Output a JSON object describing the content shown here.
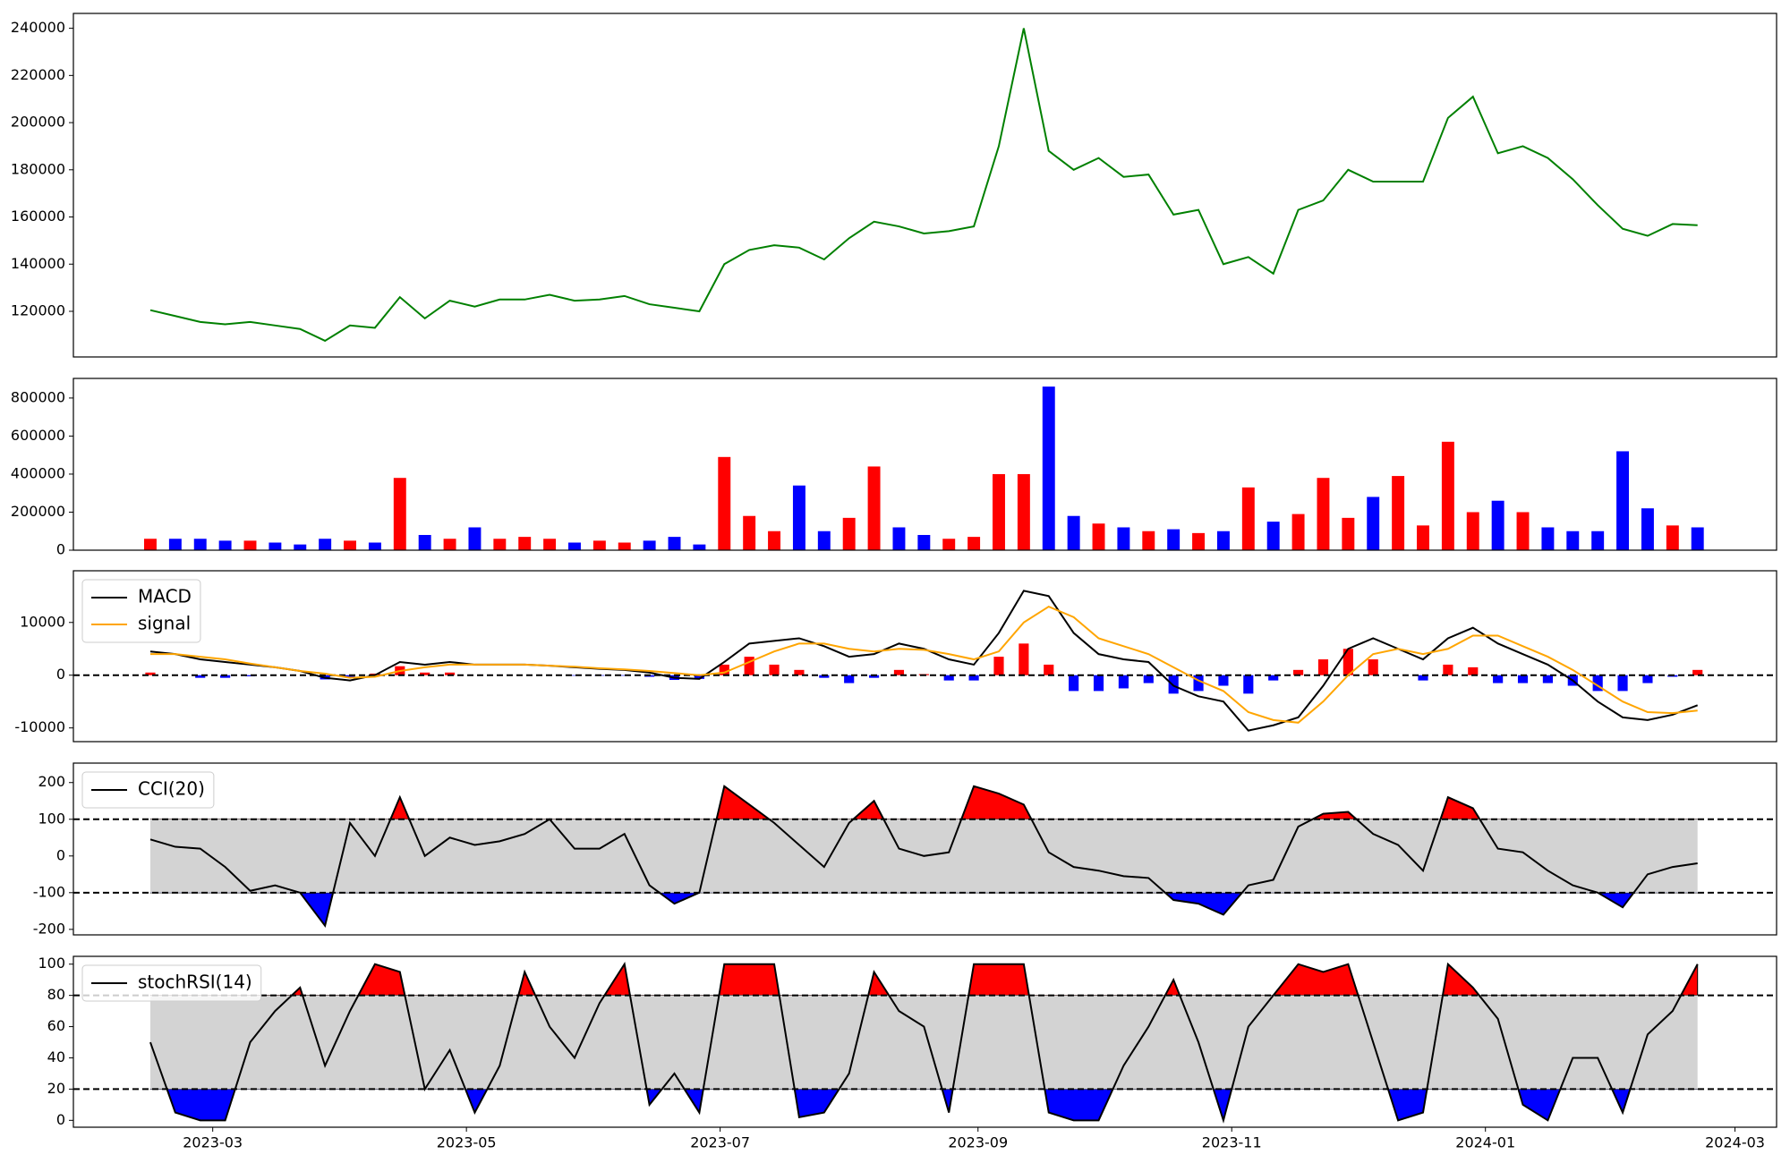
{
  "chart_data": [
    {
      "type": "line",
      "color": "#008000",
      "values": [
        120500,
        118000,
        115500,
        114500,
        115500,
        114000,
        112500,
        107500,
        114000,
        113000,
        126000,
        117000,
        124500,
        122000,
        125000,
        125000,
        127000,
        124500,
        125000,
        126500,
        123000,
        121500,
        120000,
        140000,
        146000,
        148000,
        147000,
        142000,
        151000,
        158000,
        156000,
        153000,
        154000,
        156000,
        190000,
        240000,
        188000,
        180000,
        185000,
        177000,
        178000,
        161000,
        163000,
        140000,
        143000,
        136000,
        163000,
        167000,
        180000,
        175000,
        175000,
        175000,
        202000,
        211000,
        187000,
        190000,
        185000,
        176000,
        165000,
        155000,
        152000,
        157000,
        156500
      ],
      "ylim": [
        100650,
        246300
      ],
      "yticks": [
        120000,
        140000,
        160000,
        180000,
        200000,
        220000,
        240000
      ]
    },
    {
      "type": "bar",
      "up_color": "#ff0000",
      "down_color": "#0000ff",
      "values": [
        60000,
        60000,
        60000,
        50000,
        50000,
        40000,
        30000,
        60000,
        50000,
        40000,
        380000,
        80000,
        60000,
        120000,
        60000,
        70000,
        60000,
        40000,
        50000,
        40000,
        50000,
        70000,
        30000,
        490000,
        180000,
        100000,
        340000,
        100000,
        170000,
        440000,
        120000,
        80000,
        60000,
        70000,
        400000,
        400000,
        860000,
        180000,
        140000,
        120000,
        100000,
        110000,
        90000,
        100000,
        330000,
        150000,
        190000,
        380000,
        170000,
        280000,
        390000,
        130000,
        570000,
        200000,
        260000,
        200000,
        120000,
        100000,
        100000,
        520000,
        220000,
        130000,
        120000
      ],
      "ylim": [
        0,
        903000
      ],
      "yticks": [
        0,
        200000,
        400000,
        600000,
        800000
      ]
    },
    {
      "type": "macd",
      "legend": "upper left",
      "zero_line": 0,
      "series": [
        {
          "name": "MACD",
          "color": "#000000",
          "values": [
            4500,
            4000,
            3000,
            2500,
            2000,
            1500,
            800,
            -500,
            -1000,
            0,
            2500,
            2000,
            2500,
            2000,
            2000,
            2000,
            1800,
            1500,
            1200,
            1000,
            500,
            -500,
            -700,
            2500,
            6000,
            6500,
            7000,
            5500,
            3500,
            4000,
            6000,
            5000,
            3000,
            2000,
            8000,
            16000,
            15000,
            8000,
            4000,
            3000,
            2500,
            -2000,
            -4000,
            -5000,
            -10500,
            -9500,
            -8000,
            -2000,
            5000,
            7000,
            5000,
            3000,
            7000,
            9000,
            6000,
            4000,
            2000,
            -1000,
            -5000,
            -8000,
            -8500,
            -7500,
            -5700
          ]
        },
        {
          "name": "signal",
          "color": "#ffa500",
          "values": [
            4000,
            4000,
            3500,
            3000,
            2200,
            1500,
            800,
            300,
            -500,
            -300,
            800,
            1500,
            2000,
            2000,
            2000,
            2000,
            1800,
            1600,
            1300,
            1100,
            800,
            400,
            0,
            500,
            2500,
            4500,
            6000,
            6000,
            5000,
            4500,
            5000,
            4800,
            4000,
            3000,
            4500,
            10000,
            13000,
            11000,
            7000,
            5500,
            4000,
            1500,
            -1000,
            -3000,
            -7000,
            -8500,
            -9000,
            -5000,
            0,
            4000,
            5000,
            4000,
            5000,
            7500,
            7500,
            5500,
            3500,
            1000,
            -2000,
            -5000,
            -7000,
            -7200,
            -6700
          ]
        }
      ],
      "histogram": {
        "up_color": "#ff0000",
        "down_color": "#0000ff",
        "values": [
          500,
          0,
          -500,
          -500,
          -200,
          0,
          0,
          -800,
          -500,
          300,
          1700,
          500,
          500,
          0,
          0,
          0,
          0,
          -100,
          -100,
          -100,
          -300,
          -900,
          -700,
          2000,
          3500,
          2000,
          1000,
          -500,
          -1500,
          -500,
          1000,
          200,
          -1000,
          -1000,
          3500,
          6000,
          2000,
          -3000,
          -3000,
          -2500,
          -1500,
          -3500,
          -3000,
          -2000,
          -3500,
          -1000,
          1000,
          3000,
          5000,
          3000,
          0,
          -1000,
          2000,
          1500,
          -1500,
          -1500,
          -1500,
          -2000,
          -3000,
          -3000,
          -1500,
          -300,
          1000
        ]
      },
      "ylim": [
        -12600,
        19800
      ],
      "yticks": [
        -10000,
        0,
        10000
      ]
    },
    {
      "type": "oscillator",
      "legend": "upper left",
      "thresholds": [
        -100,
        100
      ],
      "band_color": "#d3d3d3",
      "over_color": "#ff0000",
      "under_color": "#0000ff",
      "series": [
        {
          "name": "CCI(20)",
          "color": "#000000",
          "values": [
            45,
            25,
            20,
            -30,
            -95,
            -80,
            -100,
            -190,
            90,
            0,
            160,
            0,
            50,
            30,
            40,
            60,
            100,
            20,
            20,
            60,
            -80,
            -130,
            -100,
            190,
            140,
            90,
            30,
            -30,
            90,
            150,
            20,
            0,
            10,
            190,
            170,
            140,
            10,
            -30,
            -40,
            -55,
            -60,
            -120,
            -130,
            -160,
            -80,
            -65,
            80,
            115,
            120,
            60,
            30,
            -40,
            160,
            130,
            20,
            10,
            -40,
            -80,
            -100,
            -140,
            -50,
            -30,
            -20
          ]
        }
      ],
      "ylim": [
        -215,
        253
      ],
      "yticks": [
        -200,
        -100,
        0,
        100,
        200
      ]
    },
    {
      "type": "oscillator",
      "legend": "upper left",
      "thresholds": [
        20,
        80
      ],
      "band_color": "#d3d3d3",
      "over_color": "#ff0000",
      "under_color": "#0000ff",
      "series": [
        {
          "name": "stochRSI(14)",
          "color": "#000000",
          "values": [
            50,
            5,
            0,
            0,
            50,
            70,
            85,
            35,
            70,
            100,
            95,
            20,
            45,
            5,
            35,
            95,
            60,
            40,
            75,
            100,
            10,
            30,
            5,
            100,
            100,
            100,
            2,
            5,
            30,
            95,
            70,
            60,
            5,
            100,
            100,
            100,
            5,
            0,
            0,
            35,
            60,
            90,
            50,
            0,
            60,
            80,
            100,
            95,
            100,
            50,
            0,
            5,
            100,
            85,
            65,
            10,
            0,
            40,
            40,
            5,
            55,
            70,
            100
          ]
        }
      ],
      "ylim": [
        -4.4,
        105
      ],
      "yticks": [
        0,
        20,
        40,
        60,
        80,
        100
      ],
      "x": [
        19402,
        19408,
        19414,
        19420,
        19426,
        19432,
        19438,
        19444,
        19450,
        19456,
        19462,
        19468,
        19474,
        19480,
        19486,
        19492,
        19498,
        19504,
        19510,
        19516,
        19522,
        19528,
        19534,
        19540,
        19546,
        19552,
        19558,
        19564,
        19570,
        19576,
        19582,
        19588,
        19594,
        19600,
        19606,
        19612,
        19618,
        19624,
        19630,
        19636,
        19642,
        19648,
        19654,
        19660,
        19666,
        19672,
        19678,
        19684,
        19690,
        19696,
        19702,
        19708,
        19714,
        19720,
        19726,
        19732,
        19738,
        19744,
        19750,
        19756,
        19762,
        19768,
        19774
      ],
      "xlim": [
        19383.5,
        19793
      ],
      "xticks": [
        {
          "value": 19417,
          "label": "2023-03"
        },
        {
          "value": 19478,
          "label": "2023-05"
        },
        {
          "value": 19539,
          "label": "2023-07"
        },
        {
          "value": 19601,
          "label": "2023-09"
        },
        {
          "value": 19662,
          "label": "2023-11"
        },
        {
          "value": 19723,
          "label": "2024-01"
        },
        {
          "value": 19783,
          "label": "2024-03"
        }
      ]
    }
  ]
}
